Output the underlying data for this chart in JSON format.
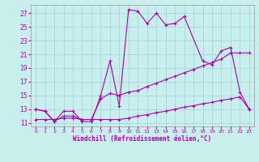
{
  "xlabel": "Windchill (Refroidissement éolien,°C)",
  "bg_color": "#c8eeee",
  "grid_color": "#a8d8d8",
  "line_color": "#aa00aa",
  "xlim": [
    -0.5,
    23.5
  ],
  "ylim": [
    10.5,
    28.2
  ],
  "xticks": [
    0,
    1,
    2,
    3,
    4,
    5,
    6,
    7,
    8,
    9,
    10,
    11,
    12,
    13,
    14,
    15,
    16,
    17,
    18,
    19,
    20,
    21,
    22,
    23
  ],
  "yticks": [
    11,
    13,
    15,
    17,
    19,
    21,
    23,
    25,
    27
  ],
  "line1_x": [
    0,
    1,
    2,
    3,
    4,
    5,
    6,
    7,
    8,
    9,
    10,
    11,
    12,
    13,
    14,
    15,
    16,
    18,
    19,
    20,
    21,
    22,
    23
  ],
  "line1_y": [
    13.0,
    12.7,
    11.2,
    12.7,
    12.7,
    11.2,
    11.2,
    15.0,
    20.0,
    13.5,
    27.5,
    27.3,
    25.5,
    27.0,
    25.3,
    25.5,
    26.5,
    20.0,
    19.5,
    21.5,
    22.0,
    15.5,
    13.0
  ],
  "line2_x": [
    0,
    1,
    2,
    3,
    4,
    5,
    6,
    7,
    8,
    9,
    10,
    11,
    12,
    13,
    14,
    15,
    16,
    17,
    18,
    19,
    20,
    21,
    22,
    23
  ],
  "line2_y": [
    11.5,
    11.5,
    11.5,
    11.7,
    11.7,
    11.5,
    11.5,
    11.5,
    11.5,
    11.5,
    11.7,
    12.0,
    12.2,
    12.5,
    12.7,
    13.0,
    13.3,
    13.5,
    13.8,
    14.0,
    14.3,
    14.5,
    14.8,
    13.0
  ],
  "line3_x": [
    0,
    1,
    2,
    3,
    4,
    5,
    6,
    7,
    8,
    9,
    10,
    11,
    12,
    13,
    14,
    15,
    16,
    17,
    18,
    19,
    20,
    21,
    22,
    23
  ],
  "line3_y": [
    13.0,
    12.7,
    11.2,
    12.0,
    12.0,
    11.5,
    11.5,
    14.5,
    15.3,
    15.0,
    15.5,
    15.7,
    16.3,
    16.8,
    17.3,
    17.8,
    18.3,
    18.8,
    19.3,
    19.8,
    20.3,
    21.2,
    21.2,
    21.2
  ],
  "figsize": [
    3.2,
    2.0
  ],
  "dpi": 100
}
